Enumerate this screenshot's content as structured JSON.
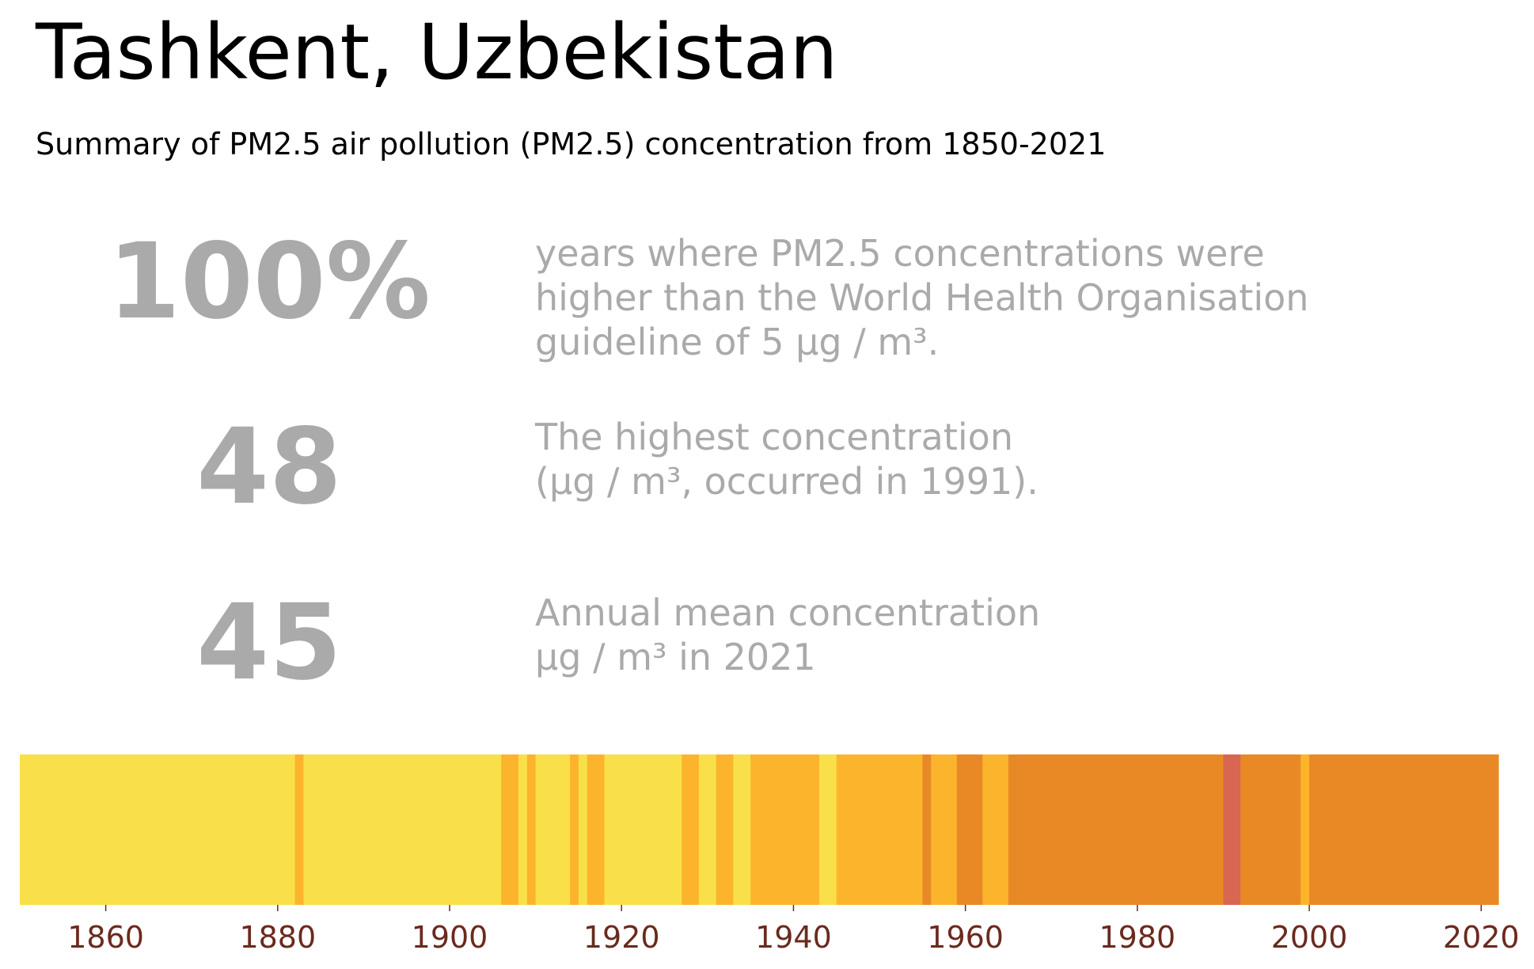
{
  "title": "Tashkent, Uzbekistan",
  "subtitle": "Summary of PM2.5 air pollution (PM2.5) concentration from 1850-2021",
  "stats": [
    {
      "value": "100%",
      "description": "years where PM2.5 concentrations were\nhigher than the World Health Organisation\nguideline of 5 µg / m³."
    },
    {
      "value": "48",
      "description": "The highest concentration\n(µg / m³, occurred in 1991)."
    },
    {
      "value": "45",
      "description": "Annual mean concentration\nµg / m³ in 2021"
    }
  ],
  "colors": {
    "low": "#f9e04a",
    "medium": "#fcb42c",
    "high": "#e98926",
    "very_high": "#d96553",
    "tick_label": "#6b2a1e",
    "stat_text": "#aaaaaa"
  },
  "chart_data": {
    "type": "heatmap",
    "description_of_encoding": "warming-stripes style color bands per year",
    "xlim": [
      1850,
      2022
    ],
    "x_ticks": [
      1860,
      1880,
      1900,
      1920,
      1940,
      1960,
      1980,
      2000,
      2020
    ],
    "tick_labels": [
      "1860",
      "1880",
      "1900",
      "1920",
      "1940",
      "1960",
      "1980",
      "2000",
      "2020"
    ],
    "bands": [
      {
        "start": 1850,
        "end": 1882,
        "level": "low"
      },
      {
        "start": 1882,
        "end": 1883,
        "level": "medium"
      },
      {
        "start": 1883,
        "end": 1906,
        "level": "low"
      },
      {
        "start": 1906,
        "end": 1908,
        "level": "medium"
      },
      {
        "start": 1908,
        "end": 1909,
        "level": "low"
      },
      {
        "start": 1909,
        "end": 1910,
        "level": "medium"
      },
      {
        "start": 1910,
        "end": 1914,
        "level": "low"
      },
      {
        "start": 1914,
        "end": 1915,
        "level": "medium"
      },
      {
        "start": 1915,
        "end": 1916,
        "level": "low"
      },
      {
        "start": 1916,
        "end": 1918,
        "level": "medium"
      },
      {
        "start": 1918,
        "end": 1927,
        "level": "low"
      },
      {
        "start": 1927,
        "end": 1929,
        "level": "medium"
      },
      {
        "start": 1929,
        "end": 1931,
        "level": "low"
      },
      {
        "start": 1931,
        "end": 1933,
        "level": "medium"
      },
      {
        "start": 1933,
        "end": 1935,
        "level": "low"
      },
      {
        "start": 1935,
        "end": 1943,
        "level": "medium"
      },
      {
        "start": 1943,
        "end": 1945,
        "level": "low"
      },
      {
        "start": 1945,
        "end": 1955,
        "level": "medium"
      },
      {
        "start": 1955,
        "end": 1956,
        "level": "high"
      },
      {
        "start": 1956,
        "end": 1959,
        "level": "medium"
      },
      {
        "start": 1959,
        "end": 1962,
        "level": "high"
      },
      {
        "start": 1962,
        "end": 1965,
        "level": "medium"
      },
      {
        "start": 1965,
        "end": 1990,
        "level": "high"
      },
      {
        "start": 1990,
        "end": 1992,
        "level": "very_high"
      },
      {
        "start": 1992,
        "end": 1999,
        "level": "high"
      },
      {
        "start": 1999,
        "end": 2000,
        "level": "medium"
      },
      {
        "start": 2000,
        "end": 2022,
        "level": "high"
      }
    ]
  }
}
